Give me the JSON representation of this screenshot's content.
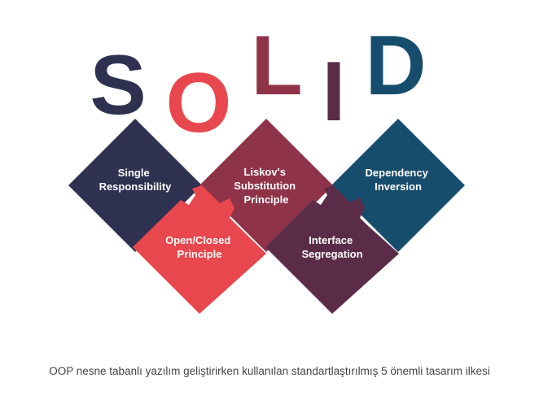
{
  "letters": [
    "S",
    "O",
    "L",
    "I",
    "D"
  ],
  "principles": [
    {
      "key": "single",
      "lines": [
        "Single",
        "Responsibility"
      ]
    },
    {
      "key": "open",
      "lines": [
        "Open/Closed",
        "Principle"
      ]
    },
    {
      "key": "liskov",
      "lines": [
        "Liskov's",
        "Substitution",
        "Principle"
      ]
    },
    {
      "key": "interface",
      "lines": [
        "Interface",
        "Segregation"
      ]
    },
    {
      "key": "dependency",
      "lines": [
        "Dependency",
        "Inversion"
      ]
    }
  ],
  "colors": {
    "navy": "#2f3150",
    "red": "#e8474d",
    "wine": "#8f3348",
    "plum": "#5a2c48",
    "teal": "#174d6c"
  },
  "caption": "OOP nesne tabanlı yazılım geliştirirken kullanılan standartlaştırılmış 5 önemli tasarım ilkesi"
}
